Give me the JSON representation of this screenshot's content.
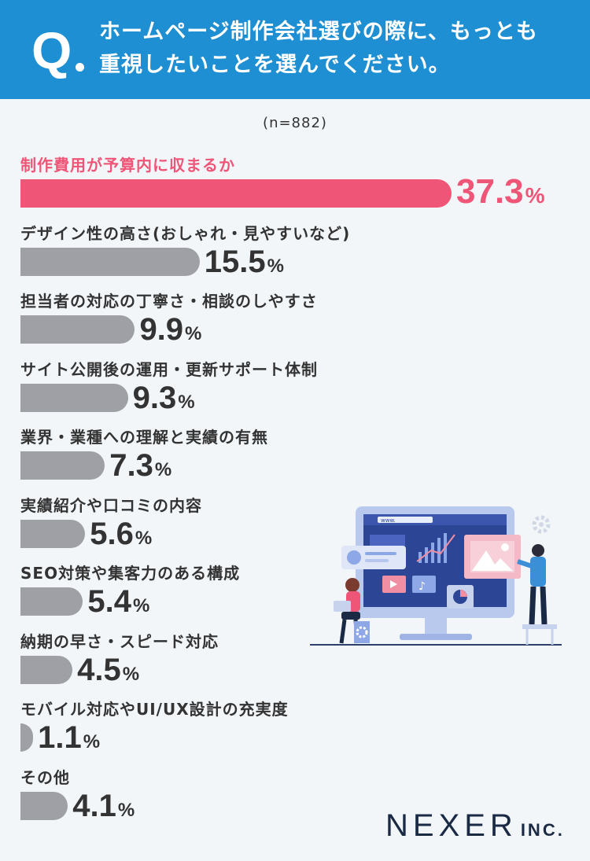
{
  "header": {
    "q_letter": "Q",
    "question_line1": "ホームページ制作会社選びの際に、もっとも",
    "question_line2": "重視したいことを選んでください。"
  },
  "sample_size": "(n=882)",
  "chart_data": {
    "type": "bar",
    "orientation": "horizontal",
    "unit": "%",
    "categories": [
      "制作費用が予算内に収まるか",
      "デザイン性の高さ(おしゃれ・見やすいなど)",
      "担当者の対応の丁寧さ・相談のしやすさ",
      "サイト公開後の運用・更新サポート体制",
      "業界・業種への理解と実績の有無",
      "実績紹介や口コミの内容",
      "SEO対策や集客力のある構成",
      "納期の早さ・スピード対応",
      "モバイル対応やUI/UX設計の充実度",
      "その他"
    ],
    "values": [
      37.3,
      15.5,
      9.9,
      9.3,
      7.3,
      5.6,
      5.4,
      4.5,
      1.1,
      4.1
    ],
    "value_labels": [
      "37.3",
      "15.5",
      "9.9",
      "9.3",
      "7.3",
      "5.6",
      "5.4",
      "4.5",
      "1.1",
      "4.1"
    ],
    "percent_sign": "%",
    "highlight_index": 0,
    "colors": {
      "highlight": "#ef5577",
      "default": "#9fa0a5"
    }
  },
  "colors": {
    "header_bg": "#1f8fd3",
    "page_bg": "#f2f6f9"
  },
  "illustration": {
    "browser_text": "www."
  },
  "logo": {
    "name": "NEXER",
    "suffix": "INC."
  }
}
